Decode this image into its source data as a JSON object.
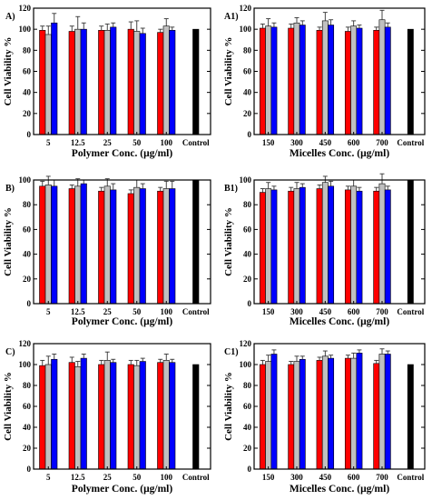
{
  "colors": {
    "red": "#ff0000",
    "gray": "#c0c0c0",
    "blue": "#0000ff",
    "control": "#000000"
  },
  "chart_data": [
    {
      "panel_label": "A)",
      "type": "bar",
      "xlabel": "Polymer Conc. (μg/ml)",
      "ylabel": "Cell Viability %",
      "ylim": [
        0,
        120
      ],
      "yticks": [
        0,
        20,
        40,
        60,
        80,
        100,
        120
      ],
      "categories": [
        "5",
        "12.5",
        "25",
        "50",
        "100"
      ],
      "series": [
        {
          "color": "red",
          "values": [
            99,
            98,
            99,
            100,
            97
          ],
          "errors": [
            4,
            5,
            4,
            7,
            3
          ]
        },
        {
          "color": "gray",
          "values": [
            95,
            100,
            99,
            98,
            103
          ],
          "errors": [
            8,
            12,
            6,
            10,
            7
          ]
        },
        {
          "color": "blue",
          "values": [
            106,
            100,
            102,
            96,
            99
          ],
          "errors": [
            9,
            6,
            4,
            5,
            3
          ]
        }
      ],
      "control": {
        "label": "Control",
        "value": 100
      }
    },
    {
      "panel_label": "A1)",
      "type": "bar",
      "xlabel": "Micelles Conc. (μg/ml)",
      "ylabel": "Cell Viability %",
      "ylim": [
        0,
        120
      ],
      "yticks": [
        0,
        20,
        40,
        60,
        80,
        100,
        120
      ],
      "categories": [
        "150",
        "300",
        "450",
        "600",
        "700"
      ],
      "series": [
        {
          "color": "red",
          "values": [
            101,
            101,
            99,
            98,
            99
          ],
          "errors": [
            4,
            4,
            3,
            4,
            3
          ]
        },
        {
          "color": "gray",
          "values": [
            103,
            106,
            108,
            103,
            109
          ],
          "errors": [
            7,
            5,
            8,
            5,
            9
          ]
        },
        {
          "color": "blue",
          "values": [
            102,
            104,
            104,
            101,
            102
          ],
          "errors": [
            4,
            4,
            5,
            3,
            4
          ]
        }
      ],
      "control": {
        "label": "Control",
        "value": 100
      }
    },
    {
      "panel_label": "B)",
      "type": "bar",
      "xlabel": "Polymer Conc. (μg/ml)",
      "ylabel": "Cell Viability %",
      "ylim": [
        0,
        100
      ],
      "yticks": [
        0,
        20,
        40,
        60,
        80,
        100
      ],
      "categories": [
        "5",
        "12.5",
        "25",
        "50",
        "100"
      ],
      "series": [
        {
          "color": "red",
          "values": [
            95,
            93,
            91,
            89,
            91
          ],
          "errors": [
            4,
            3,
            3,
            3,
            3
          ]
        },
        {
          "color": "gray",
          "values": [
            96,
            95,
            95,
            94,
            93
          ],
          "errors": [
            7,
            6,
            6,
            6,
            6
          ]
        },
        {
          "color": "blue",
          "values": [
            95,
            97,
            92,
            93,
            93
          ],
          "errors": [
            5,
            3,
            5,
            4,
            6
          ]
        }
      ],
      "control": {
        "label": "Control",
        "value": 100
      }
    },
    {
      "panel_label": "B1)",
      "type": "bar",
      "xlabel": "Micelles Conc. (μg/ml)",
      "ylabel": "Cell Viability %",
      "ylim": [
        0,
        100
      ],
      "yticks": [
        0,
        20,
        40,
        60,
        80,
        100
      ],
      "categories": [
        "150",
        "300",
        "450",
        "600",
        "700"
      ],
      "series": [
        {
          "color": "red",
          "values": [
            90,
            91,
            93,
            92,
            91
          ],
          "errors": [
            3,
            3,
            3,
            3,
            3
          ]
        },
        {
          "color": "gray",
          "values": [
            93,
            93,
            98,
            95,
            97
          ],
          "errors": [
            5,
            5,
            5,
            5,
            8
          ]
        },
        {
          "color": "blue",
          "values": [
            92,
            94,
            95,
            91,
            92
          ],
          "errors": [
            3,
            3,
            4,
            3,
            3
          ]
        }
      ],
      "control": {
        "label": "Control",
        "value": 100
      }
    },
    {
      "panel_label": "C)",
      "type": "bar",
      "xlabel": "Polymer Conc. (μg/ml)",
      "ylabel": "Cell Viability %",
      "ylim": [
        0,
        120
      ],
      "yticks": [
        0,
        20,
        40,
        60,
        80,
        100,
        120
      ],
      "categories": [
        "5",
        "12.5",
        "25",
        "50",
        "100"
      ],
      "series": [
        {
          "color": "red",
          "values": [
            99,
            102,
            100,
            100,
            102
          ],
          "errors": [
            5,
            5,
            4,
            4,
            3
          ]
        },
        {
          "color": "gray",
          "values": [
            100,
            98,
            104,
            99,
            104
          ],
          "errors": [
            8,
            5,
            8,
            5,
            6
          ]
        },
        {
          "color": "blue",
          "values": [
            105,
            106,
            102,
            103,
            102
          ],
          "errors": [
            5,
            4,
            3,
            3,
            3
          ]
        }
      ],
      "control": {
        "label": "Control",
        "value": 100
      }
    },
    {
      "panel_label": "C1)",
      "type": "bar",
      "xlabel": "Micelles Conc. (μg/ml)",
      "ylabel": "Cell Viability %",
      "ylim": [
        0,
        120
      ],
      "yticks": [
        0,
        20,
        40,
        60,
        80,
        100,
        120
      ],
      "categories": [
        "150",
        "300",
        "450",
        "600",
        "700"
      ],
      "series": [
        {
          "color": "red",
          "values": [
            100,
            100,
            104,
            106,
            101
          ],
          "errors": [
            4,
            3,
            3,
            3,
            3
          ]
        },
        {
          "color": "gray",
          "values": [
            103,
            103,
            108,
            106,
            110
          ],
          "errors": [
            6,
            5,
            5,
            5,
            5
          ]
        },
        {
          "color": "blue",
          "values": [
            110,
            105,
            106,
            111,
            110
          ],
          "errors": [
            4,
            3,
            3,
            3,
            3
          ]
        }
      ],
      "control": {
        "label": "Control",
        "value": 100
      }
    }
  ]
}
